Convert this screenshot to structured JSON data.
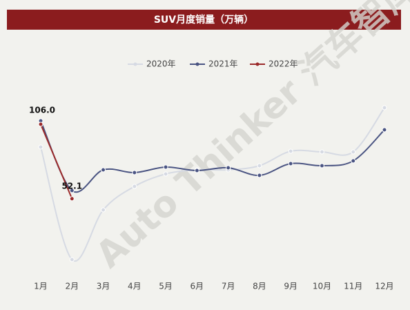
{
  "chart_data": {
    "type": "line",
    "title": "SUV月度销量（万辆）",
    "watermark": "Auto Thinker 汽车智库平台",
    "categories": [
      "1月",
      "2月",
      "3月",
      "4月",
      "5月",
      "6月",
      "7月",
      "8月",
      "9月",
      "10月",
      "11月",
      "12月"
    ],
    "series": [
      {
        "name": "2020年",
        "color": "#d6dae3",
        "values": [
          89.5,
          8,
          44,
          61,
          70,
          73,
          73,
          76,
          86.5,
          86,
          86,
          118
        ]
      },
      {
        "name": "2021年",
        "color": "#4a5482",
        "values": [
          108.5,
          58,
          73,
          71,
          75,
          72.5,
          74.5,
          69,
          77.5,
          76,
          79.5,
          102
        ]
      },
      {
        "name": "2022年",
        "color": "#9b2a2a",
        "values": [
          106.0,
          52.1,
          null,
          null,
          null,
          null,
          null,
          null,
          null,
          null,
          null,
          null
        ],
        "value_labels": [
          "106.0",
          "52.1",
          null,
          null,
          null,
          null,
          null,
          null,
          null,
          null,
          null,
          null
        ]
      }
    ],
    "ylim": [
      0,
      130
    ],
    "smooth": true,
    "legend": "top"
  }
}
